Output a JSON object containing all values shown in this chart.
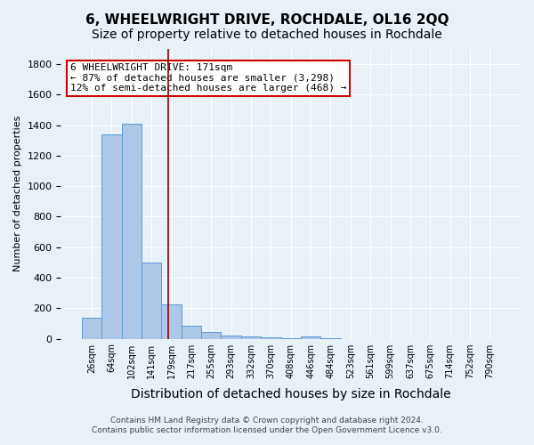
{
  "title": "6, WHEELWRIGHT DRIVE, ROCHDALE, OL16 2QQ",
  "subtitle": "Size of property relative to detached houses in Rochdale",
  "xlabel": "Distribution of detached houses by size in Rochdale",
  "ylabel": "Number of detached properties",
  "footer_line1": "Contains HM Land Registry data © Crown copyright and database right 2024.",
  "footer_line2": "Contains public sector information licensed under the Open Government Licence v3.0.",
  "bin_labels": [
    "26sqm",
    "64sqm",
    "102sqm",
    "141sqm",
    "179sqm",
    "217sqm",
    "255sqm",
    "293sqm",
    "332sqm",
    "370sqm",
    "408sqm",
    "446sqm",
    "484sqm",
    "523sqm",
    "561sqm",
    "599sqm",
    "637sqm",
    "675sqm",
    "714sqm",
    "752sqm",
    "790sqm"
  ],
  "bar_values": [
    140,
    1340,
    1410,
    500,
    225,
    85,
    45,
    20,
    15,
    10,
    5,
    15,
    2,
    0,
    0,
    0,
    0,
    0,
    0,
    0,
    0
  ],
  "bar_color": "#aec6e8",
  "bar_edge_color": "#5b9bd5",
  "red_line_x": 3.85,
  "property_label": "6 WHEELWRIGHT DRIVE: 171sqm",
  "annotation_line1": "← 87% of detached houses are smaller (3,298)",
  "annotation_line2": "12% of semi-detached houses are larger (468) →",
  "annotation_box_color": "#ffffff",
  "annotation_box_edge": "#cc0000",
  "ylim": [
    0,
    1900
  ],
  "yticks": [
    0,
    200,
    400,
    600,
    800,
    1000,
    1200,
    1400,
    1600,
    1800
  ],
  "bg_color": "#e8f0f8",
  "grid_color": "#ffffff",
  "title_fontsize": 11,
  "subtitle_fontsize": 10
}
